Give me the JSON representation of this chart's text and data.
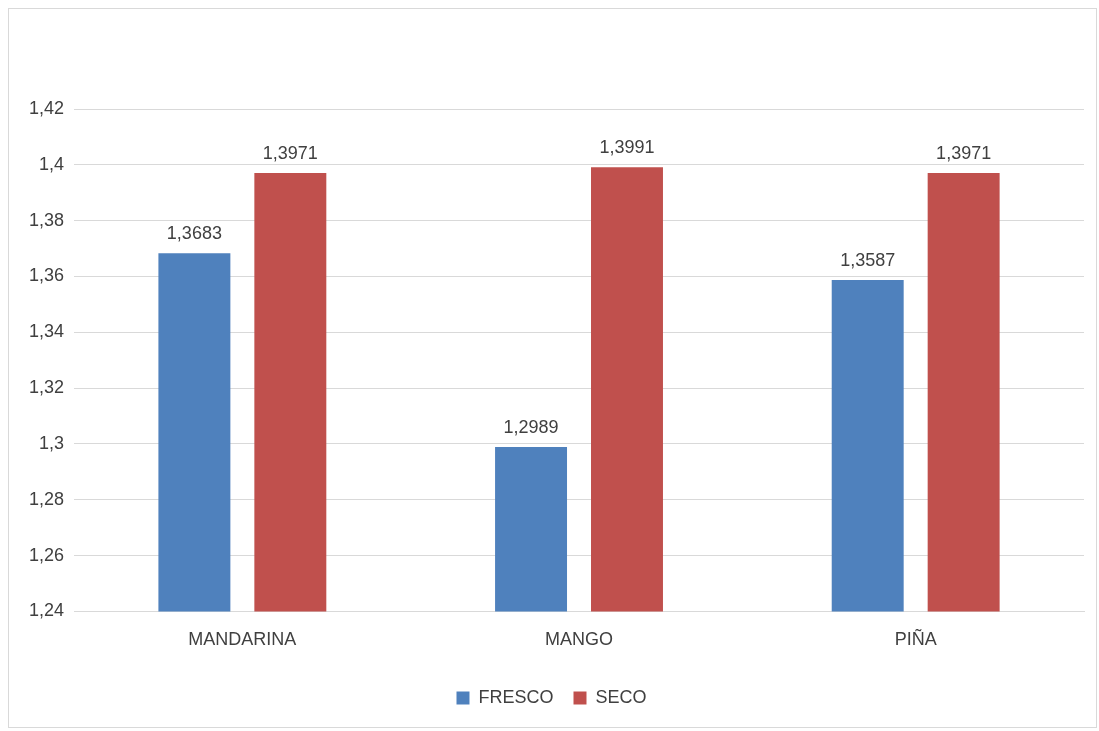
{
  "chart_data": {
    "type": "bar",
    "categories": [
      "MANDARINA",
      "MANGO",
      "PIÑA"
    ],
    "series": [
      {
        "name": "FRESCO",
        "color": "#4f81bd",
        "values": [
          1.3683,
          1.2989,
          1.3587
        ],
        "value_labels": [
          "1,3683",
          "1,2989",
          "1,3587"
        ]
      },
      {
        "name": "SECO",
        "color": "#c0504d",
        "values": [
          1.3971,
          1.3991,
          1.3971
        ],
        "value_labels": [
          "1,3971",
          "1,3991",
          "1,3971"
        ]
      }
    ],
    "ylim": [
      1.24,
      1.42
    ],
    "yticks": [
      {
        "value": 1.24,
        "label": "1,24"
      },
      {
        "value": 1.26,
        "label": "1,26"
      },
      {
        "value": 1.28,
        "label": "1,28"
      },
      {
        "value": 1.3,
        "label": "1,3"
      },
      {
        "value": 1.32,
        "label": "1,32"
      },
      {
        "value": 1.34,
        "label": "1,34"
      },
      {
        "value": 1.36,
        "label": "1,36"
      },
      {
        "value": 1.38,
        "label": "1,38"
      },
      {
        "value": 1.4,
        "label": "1,4"
      },
      {
        "value": 1.42,
        "label": "1,42"
      }
    ],
    "grid": "y",
    "legend": "bottom"
  }
}
